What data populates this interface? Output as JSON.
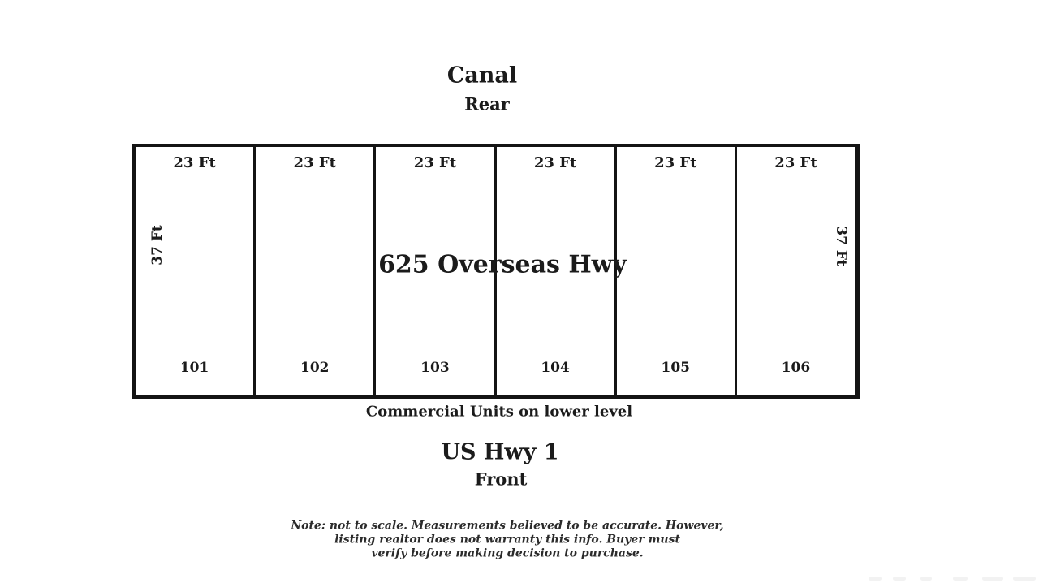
{
  "diagram": {
    "rear_street": "Canal",
    "rear_label": "Rear",
    "address": "625 Overseas Hwy",
    "front_street": "US Hwy 1",
    "front_label": "Front",
    "lower_level_note": "Commercial Units on lower level",
    "depth_left": "37 Ft",
    "depth_right": "37 Ft",
    "units": [
      {
        "number": "101",
        "width": "23 Ft"
      },
      {
        "number": "102",
        "width": "23 Ft"
      },
      {
        "number": "103",
        "width": "23 Ft"
      },
      {
        "number": "104",
        "width": "23 Ft"
      },
      {
        "number": "105",
        "width": "23 Ft"
      },
      {
        "number": "106",
        "width": "23 Ft"
      }
    ],
    "disclaimer_lines": [
      "Note: not to scale. Measurements believed to be accurate. However,",
      "listing realtor does not warranty this info. Buyer must",
      "verify before making decision to purchase."
    ],
    "colors": {
      "ink": "#1b1b1b",
      "line": "#141414",
      "background": "#ffffff"
    }
  }
}
